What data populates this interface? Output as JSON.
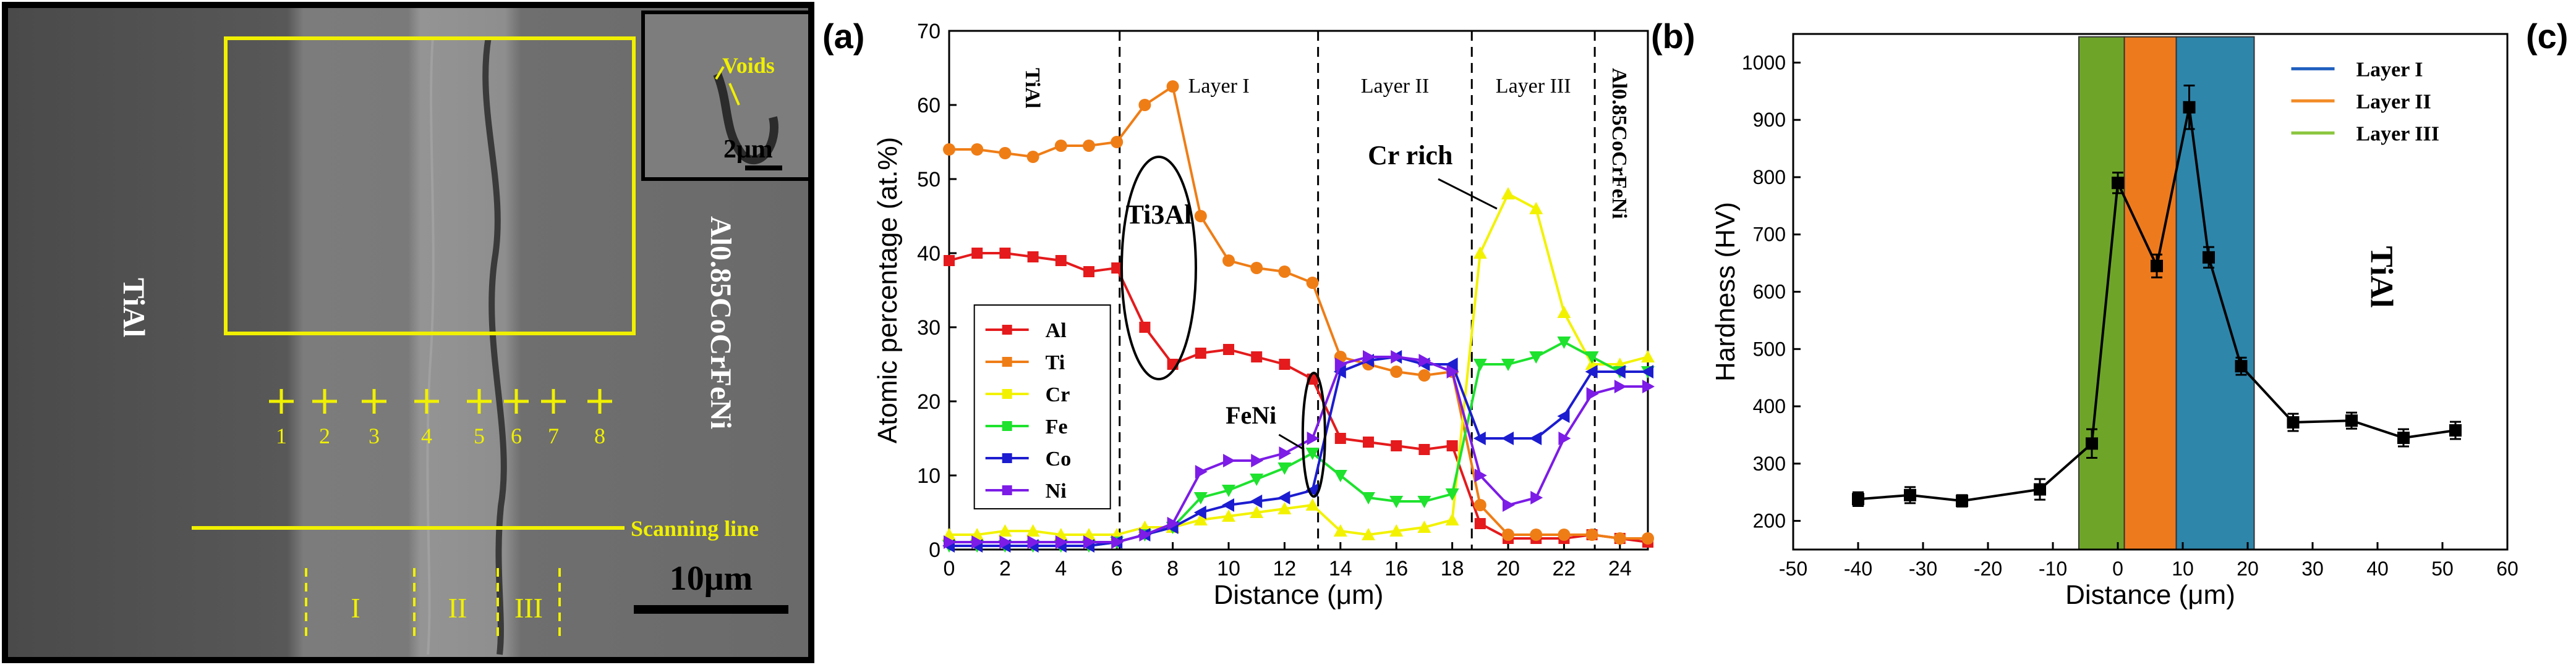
{
  "panel_labels": {
    "a": "(a)",
    "b": "(b)",
    "c": "(c)"
  },
  "sem": {
    "left_material": "TiAl",
    "right_material": "Al0.85CoCrFeNi",
    "inset_annotation": "Voids",
    "inset_scale": "2μm",
    "scale_bar": "10μm",
    "scanning_line": "Scanning line",
    "points": [
      "1",
      "2",
      "3",
      "4",
      "5",
      "6",
      "7",
      "8"
    ],
    "layers": [
      "I",
      "II",
      "III"
    ]
  },
  "chart_data": [
    {
      "type": "line",
      "title": "",
      "xlabel": "Distance (μm)",
      "ylabel": "Atomic percentage (at.%)",
      "xlim": [
        0,
        25
      ],
      "ylim": [
        0,
        70
      ],
      "xticks": [
        0,
        2,
        4,
        6,
        8,
        10,
        12,
        14,
        16,
        18,
        20,
        22,
        24
      ],
      "yticks": [
        0,
        10,
        20,
        30,
        40,
        50,
        60,
        70
      ],
      "legend_position": "bottom-left",
      "x": [
        0,
        1,
        2,
        3,
        4,
        5,
        6,
        7,
        8,
        9,
        10,
        11,
        12,
        13,
        14,
        15,
        16,
        17,
        18,
        19,
        20,
        21,
        22,
        23,
        24,
        25
      ],
      "series": [
        {
          "name": "Al",
          "color": "#e41a1c",
          "marker": "square",
          "values": [
            39,
            40,
            40,
            39.5,
            39,
            37.5,
            38,
            30,
            25,
            26.5,
            27,
            26,
            25,
            23,
            15,
            14.5,
            14,
            13.5,
            14,
            3.5,
            1.5,
            1.5,
            1.5,
            2,
            1.5,
            1
          ]
        },
        {
          "name": "Ti",
          "color": "#ef7d16",
          "marker": "circle",
          "values": [
            54,
            54,
            53.5,
            53,
            54.5,
            54.5,
            55,
            60,
            62.5,
            45,
            39,
            38,
            37.5,
            36,
            26,
            25,
            24,
            23.5,
            24,
            6,
            2,
            2,
            2,
            2,
            1.5,
            1.5
          ]
        },
        {
          "name": "Cr",
          "color": "#f2f200",
          "marker": "triangle-up",
          "values": [
            2,
            2,
            2.5,
            2.5,
            2,
            2,
            2,
            3,
            3,
            4,
            4.5,
            5,
            5.5,
            6,
            2.5,
            2,
            2.5,
            3,
            4,
            40,
            48,
            46,
            32,
            25,
            25,
            26
          ]
        },
        {
          "name": "Fe",
          "color": "#1ee22e",
          "marker": "triangle-down",
          "values": [
            0.5,
            0.5,
            0.5,
            0.5,
            0.5,
            0.5,
            1,
            2,
            3,
            7,
            8,
            9.5,
            11,
            13,
            10,
            7,
            6.5,
            6.5,
            7.5,
            25,
            25,
            26,
            28,
            26,
            24,
            24
          ]
        },
        {
          "name": "Co",
          "color": "#1c1cd0",
          "marker": "triangle-left",
          "values": [
            0.5,
            0.5,
            0.5,
            0.5,
            0.5,
            0.5,
            1,
            2,
            3,
            5,
            6,
            6.5,
            7,
            8,
            24,
            25.5,
            26,
            25,
            25,
            15,
            15,
            15,
            18,
            24,
            24,
            24
          ]
        },
        {
          "name": "Ni",
          "color": "#7c1ce6",
          "marker": "triangle-right",
          "values": [
            1,
            1,
            1,
            1,
            1,
            1,
            1,
            2,
            3.5,
            10.5,
            12,
            12,
            13,
            15,
            25,
            26,
            26,
            25.5,
            24,
            10,
            6,
            7,
            15,
            21,
            22,
            22
          ]
        }
      ],
      "boundaries": [
        6.1,
        13.2,
        18.7,
        23.1
      ],
      "zone_labels": [
        "TiAl",
        "Layer I",
        "Layer II",
        "Layer III",
        "Al0.85CoCrFeNi"
      ],
      "annotations": [
        "Ti3Al",
        "FeNi",
        "Cr rich"
      ]
    },
    {
      "type": "line",
      "title": "",
      "xlabel": "Distance (μm)",
      "ylabel": "Hardness (HV)",
      "xlim": [
        -50,
        60
      ],
      "ylim": [
        150,
        1050
      ],
      "xticks": [
        -50,
        -40,
        -30,
        -20,
        -10,
        0,
        10,
        20,
        30,
        40,
        50,
        60
      ],
      "yticks": [
        200,
        300,
        400,
        500,
        600,
        700,
        800,
        900,
        1000
      ],
      "legend_position": "top-right",
      "series": [
        {
          "name": "Hardness",
          "color": "#000000",
          "marker": "square",
          "x": [
            -40,
            -32,
            -24,
            -12,
            -4,
            0,
            6,
            11,
            14,
            19,
            27,
            36,
            44,
            52
          ],
          "values": [
            238,
            245,
            235,
            255,
            335,
            790,
            645,
            922,
            660,
            470,
            372,
            375,
            345,
            358
          ],
          "errors": [
            12,
            14,
            10,
            18,
            25,
            18,
            20,
            38,
            18,
            15,
            15,
            14,
            15,
            15
          ]
        }
      ],
      "bands": [
        {
          "name": "Layer I",
          "color": "#2e86ab",
          "from": 9,
          "to": 21
        },
        {
          "name": "Layer II",
          "color": "#ee7a1e",
          "from": 1,
          "to": 9
        },
        {
          "name": "Layer III",
          "color": "#6ea529",
          "from": -6,
          "to": 1
        }
      ],
      "legend": [
        {
          "name": "Layer I",
          "color": "#1f5fbf"
        },
        {
          "name": "Layer II",
          "color": "#f28c28"
        },
        {
          "name": "Layer III",
          "color": "#8cc63f"
        }
      ],
      "side_label": "TiAl"
    }
  ]
}
